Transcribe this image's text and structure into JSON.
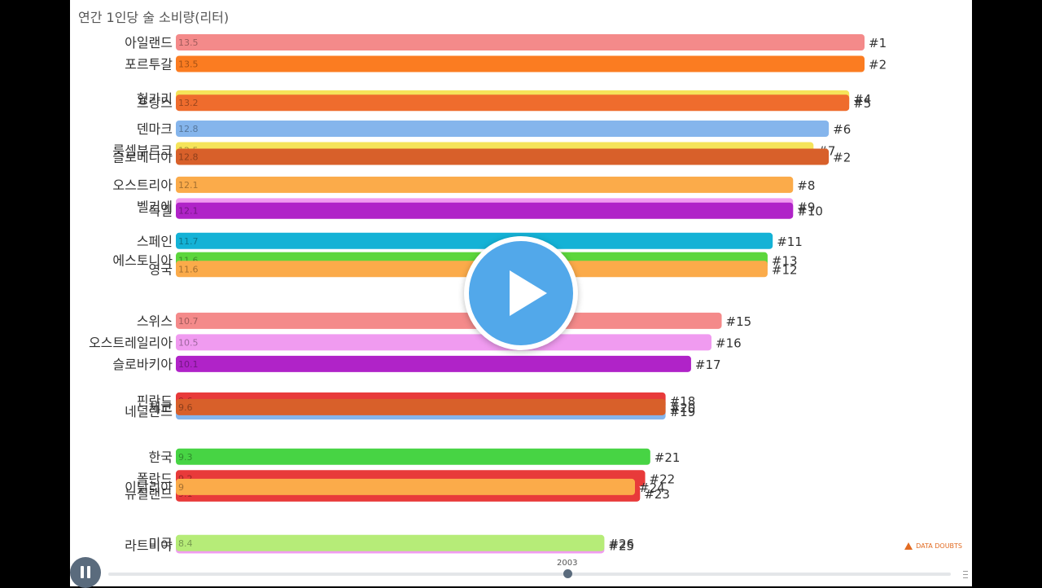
{
  "title": "연간 1인당 술 소비량(리터)",
  "data_doubts_label": "DATA DOUBTS",
  "timeline": {
    "year": "2003"
  },
  "chart_data": {
    "type": "bar",
    "title": "연간 1인당 술 소비량(리터)",
    "xlim": [
      0,
      13.5
    ],
    "bars": [
      {
        "name": "아일랜드",
        "value": 13.5,
        "rank": "#1",
        "color": "#f48a8a",
        "y": 0
      },
      {
        "name": "포르투갈",
        "value": 13.5,
        "rank": "#2",
        "color": "#fb7c21",
        "y": 1
      },
      {
        "name": "헝가리",
        "value": 13.2,
        "rank": "#4",
        "color": "#f5e45a",
        "y": 2.6
      },
      {
        "name": "프랑스",
        "value": 13.2,
        "rank": "#5",
        "color": "#ef6c2d",
        "y": 2.8
      },
      {
        "name": "덴마크",
        "value": 12.8,
        "rank": "#6",
        "color": "#85b5ec",
        "y": 4
      },
      {
        "name": "룩셈부르크",
        "value": 12.5,
        "rank": "#7",
        "color": "#f5e45a",
        "y": 5
      },
      {
        "name": "슬로베니아",
        "value": 12.8,
        "rank": "#2",
        "color": "#d8602a",
        "y": 5.3
      },
      {
        "name": "오스트리아",
        "value": 12.1,
        "rank": "#8",
        "color": "#fbab4a",
        "y": 6.6
      },
      {
        "name": "벨기에",
        "value": 12.1,
        "rank": "#9",
        "color": "#f09bf0",
        "y": 7.6
      },
      {
        "name": "독일",
        "value": 12.1,
        "rank": "#10",
        "color": "#b023c8",
        "y": 7.8
      },
      {
        "name": "스페인",
        "value": 11.7,
        "rank": "#11",
        "color": "#14b2d6",
        "y": 9.2
      },
      {
        "name": "에스토니아",
        "value": 11.6,
        "rank": "#13",
        "color": "#5cd63c",
        "y": 10.1
      },
      {
        "name": "영국",
        "value": 11.6,
        "rank": "#12",
        "color": "#fbab4a",
        "y": 10.5
      },
      {
        "name": "스위스",
        "value": 10.7,
        "rank": "#15",
        "color": "#f48a8a",
        "y": 12.9
      },
      {
        "name": "오스트레일리아",
        "value": 10.5,
        "rank": "#16",
        "color": "#f09bf0",
        "y": 13.9
      },
      {
        "name": "슬로바키아",
        "value": 10.1,
        "rank": "#17",
        "color": "#b023c8",
        "y": 14.9
      },
      {
        "name": "핀란드",
        "value": 9.6,
        "rank": "#18",
        "color": "#e83a3a",
        "y": 16.6
      },
      {
        "name": "네덜란드",
        "value": 9.6,
        "rank": "#19",
        "color": "#85b5ec",
        "y": 17.1
      },
      {
        "name": "체코",
        "value": 9.6,
        "rank": "#20",
        "color": "#d8602a",
        "y": 16.9
      },
      {
        "name": "한국",
        "value": 9.3,
        "rank": "#21",
        "color": "#47d444",
        "y": 19.2
      },
      {
        "name": "폴란드",
        "value": 9.2,
        "rank": "#22",
        "color": "#e83a3a",
        "y": 20.2
      },
      {
        "name": "뉴질랜드",
        "value": 9.1,
        "rank": "#23",
        "color": "#e83a3a",
        "y": 20.9
      },
      {
        "name": "이탈리아",
        "value": 9,
        "rank": "#24",
        "color": "#fbab4a",
        "y": 20.6
      },
      {
        "name": "라트비아",
        "value": 8.4,
        "rank": "#25",
        "color": "#f09bf0",
        "y": 23.3
      },
      {
        "name": "미국",
        "value": 8.4,
        "rank": "#26",
        "color": "#b6ec78",
        "y": 23.2
      }
    ]
  }
}
